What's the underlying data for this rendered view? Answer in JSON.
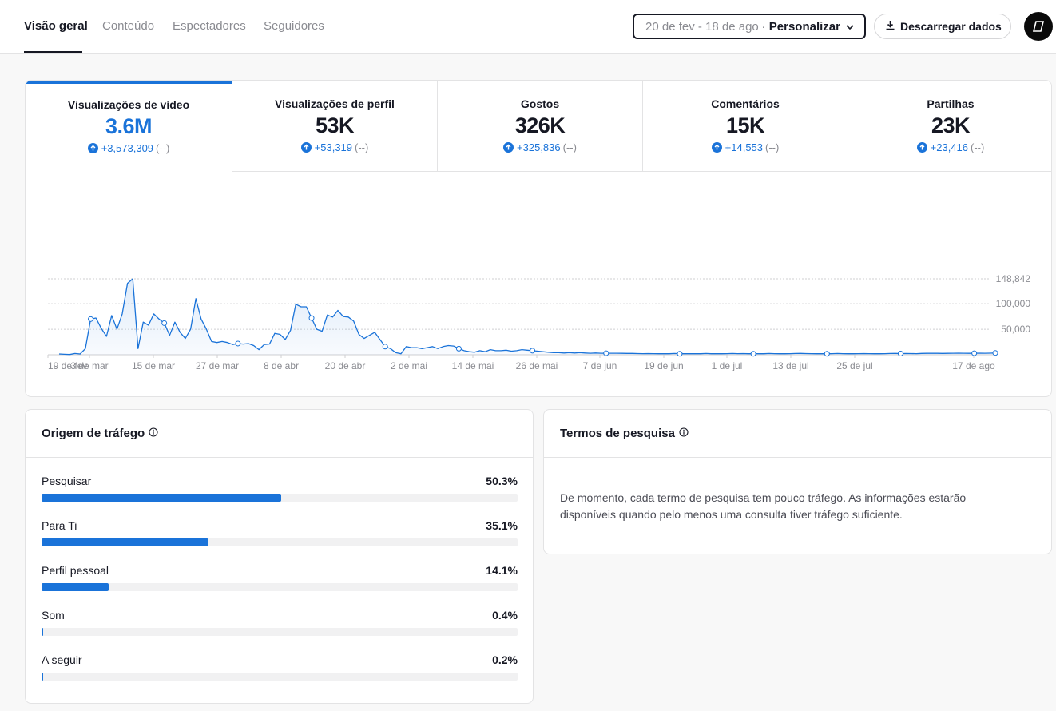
{
  "nav": {
    "tabs": [
      {
        "label": "Visão geral",
        "active": true
      },
      {
        "label": "Conteúdo",
        "active": false
      },
      {
        "label": "Espectadores",
        "active": false
      },
      {
        "label": "Seguidores",
        "active": false
      }
    ],
    "date_range": "20 de fev - 18 de ago",
    "date_sep": "·",
    "date_custom": "Personalizar",
    "download_label": "Descarregar dados"
  },
  "metrics": [
    {
      "label": "Visualizações de vídeo",
      "value": "3.6M",
      "delta": "+3,573,309",
      "prev": "(--)",
      "active": true
    },
    {
      "label": "Visualizações de perfil",
      "value": "53K",
      "delta": "+53,319",
      "prev": "(--)",
      "active": false
    },
    {
      "label": "Gostos",
      "value": "326K",
      "delta": "+325,836",
      "prev": "(--)",
      "active": false
    },
    {
      "label": "Comentários",
      "value": "15K",
      "delta": "+14,553",
      "prev": "(--)",
      "active": false
    },
    {
      "label": "Partilhas",
      "value": "23K",
      "delta": "+23,416",
      "prev": "(--)",
      "active": false
    }
  ],
  "chart_data": {
    "type": "area",
    "series": [
      {
        "values": [
          1500,
          1000,
          500,
          2500,
          1500,
          12000,
          70000,
          72000,
          52000,
          36000,
          77000,
          50000,
          80000,
          140000,
          148842,
          12000,
          64000,
          58000,
          80000,
          70000,
          62000,
          38000,
          64000,
          44000,
          32000,
          50000,
          110000,
          70000,
          50000,
          26000,
          24000,
          26000,
          24000,
          20000,
          22000,
          21000,
          22000,
          18000,
          10000,
          20000,
          21000,
          42000,
          40000,
          30000,
          48000,
          99000,
          94000,
          94000,
          72000,
          50000,
          46000,
          78000,
          74000,
          87000,
          75000,
          74000,
          66000,
          40000,
          32000,
          38000,
          44000,
          30000,
          16000,
          12000,
          4000,
          2000,
          16000,
          14000,
          14000,
          12000,
          14000,
          16000,
          12000,
          16000,
          18000,
          17000,
          12000,
          8000,
          6000,
          5000,
          8000,
          6000,
          10000,
          8000,
          8000,
          9000,
          7000,
          8000,
          10000,
          9000,
          8000,
          7000,
          6000,
          5000,
          4000,
          4000,
          3500,
          4000,
          3500,
          4000,
          3500,
          3000,
          3500,
          3000,
          3000,
          3000,
          3000,
          2800,
          2600,
          2600,
          2400,
          2200,
          2400,
          2200,
          2000,
          2000,
          2000,
          2500,
          2000,
          2000,
          2200,
          2000,
          2000,
          2500,
          2000,
          2000,
          2000,
          2200,
          2500,
          2200,
          2400,
          2000,
          2000,
          2000,
          2000,
          2500,
          2200,
          2000,
          2000,
          2200,
          2500,
          2600,
          2400,
          2200,
          2000,
          2000,
          2000,
          2200,
          2500,
          2200,
          2000,
          2000,
          2200,
          2400,
          2200,
          2000,
          2000,
          2200,
          2500,
          2600,
          2400,
          2500,
          2400,
          2200,
          2600,
          2800,
          3000,
          2800,
          2600,
          2800,
          3000,
          3200,
          3000,
          2800,
          3000,
          3200,
          3000,
          3200,
          3500
        ]
      }
    ],
    "x_start": "2024-02-19",
    "x_ticks": [
      "19 de fev",
      "3 de mar",
      "15 de mar",
      "27 de mar",
      "8 de abr",
      "20 de abr",
      "2 de mai",
      "14 de mai",
      "26 de mai",
      "7 de jun",
      "19 de jun",
      "1 de jul",
      "13 de jul",
      "25 de jul",
      "17 de ago"
    ],
    "y_ticks": [
      "148,842",
      "100,000",
      "50,000"
    ],
    "ylim": [
      0,
      148842
    ],
    "color": "#1a73d9"
  },
  "traffic": {
    "title": "Origem de tráfego",
    "sources": [
      {
        "label": "Pesquisar",
        "pct": "50.3%",
        "value": 50.3
      },
      {
        "label": "Para Ti",
        "pct": "35.1%",
        "value": 35.1
      },
      {
        "label": "Perfil pessoal",
        "pct": "14.1%",
        "value": 14.1
      },
      {
        "label": "Som",
        "pct": "0.4%",
        "value": 0.4
      },
      {
        "label": "A seguir",
        "pct": "0.2%",
        "value": 0.2
      }
    ]
  },
  "search_terms": {
    "title": "Termos de pesquisa",
    "message": "De momento, cada termo de pesquisa tem pouco tráfego. As informações estarão disponíveis quando pelo menos uma consulta tiver tráfego suficiente."
  },
  "colors": {
    "accent": "#1a73d9",
    "text": "#161823",
    "muted": "#8a8b91"
  }
}
